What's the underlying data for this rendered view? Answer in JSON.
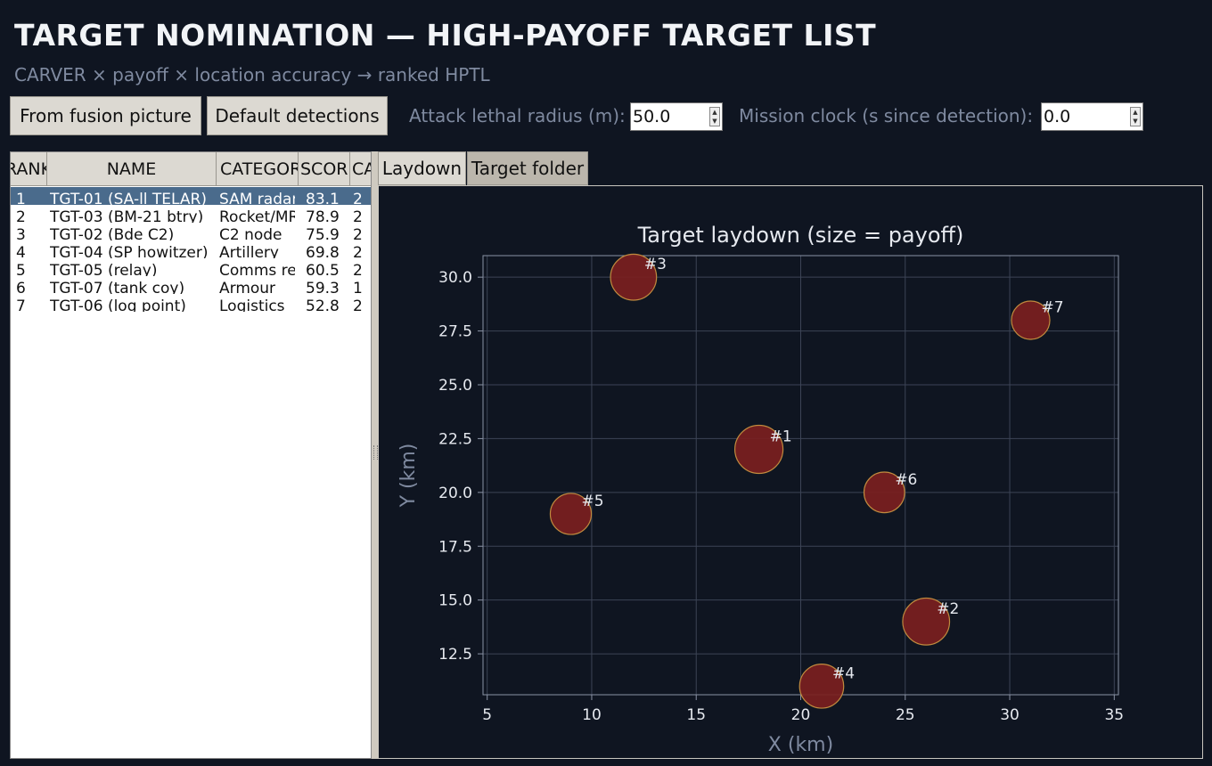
{
  "header": {
    "title": "TARGET NOMINATION — HIGH-PAYOFF TARGET LIST",
    "subtitle": "CARVER × payoff × location accuracy → ranked HPTL"
  },
  "toolbar": {
    "fusion_label": "From fusion picture",
    "default_label": "Default detections",
    "radius_label": "Attack lethal radius (m):",
    "radius_value": "50.0",
    "clock_label": "Mission clock (s since detection):",
    "clock_value": "0.0"
  },
  "table": {
    "columns": [
      "RANK",
      "NAME",
      "CATEGORY",
      "SCORE",
      "CA"
    ],
    "rows": [
      {
        "rank": "1",
        "name": "TGT-01 (SA-ll TELAR)",
        "category": "SAM radar",
        "score": "83.1",
        "ca": "2",
        "selected": true
      },
      {
        "rank": "2",
        "name": "TGT-03 (BM-21 btry)",
        "category": "Rocket/MRL",
        "score": "78.9",
        "ca": "2",
        "selected": false
      },
      {
        "rank": "3",
        "name": "TGT-02 (Bde C2)",
        "category": "C2 node",
        "score": "75.9",
        "ca": "2",
        "selected": false
      },
      {
        "rank": "4",
        "name": "TGT-04 (SP howitzer)",
        "category": "Artillery",
        "score": "69.8",
        "ca": "2",
        "selected": false
      },
      {
        "rank": "5",
        "name": "TGT-05 (relay)",
        "category": "Comms relay",
        "score": "60.5",
        "ca": "2",
        "selected": false
      },
      {
        "rank": "6",
        "name": "TGT-07 (tank coy)",
        "category": "Armour",
        "score": "59.3",
        "ca": "1",
        "selected": false
      },
      {
        "rank": "7",
        "name": "TGT-06 (log point)",
        "category": "Logistics",
        "score": "52.8",
        "ca": "2",
        "selected": false
      }
    ]
  },
  "tabs": [
    {
      "label": "Laydown",
      "active": true
    },
    {
      "label": "Target folder",
      "active": false
    }
  ],
  "chart_data": {
    "type": "scatter",
    "title": "Target laydown (size = payoff)",
    "xlabel": "X (km)",
    "ylabel": "Y (km)",
    "xlim": [
      4.8,
      35.2
    ],
    "ylim": [
      10.6,
      31.0
    ],
    "xticks": [
      5,
      10,
      15,
      20,
      25,
      30,
      35
    ],
    "yticks": [
      12.5,
      15.0,
      17.5,
      20.0,
      22.5,
      25.0,
      27.5,
      30.0
    ],
    "grid": true,
    "points": [
      {
        "label": "#1",
        "x": 18,
        "y": 22,
        "payoff": 83.1
      },
      {
        "label": "#2",
        "x": 26,
        "y": 14,
        "payoff": 78.9
      },
      {
        "label": "#3",
        "x": 12,
        "y": 30,
        "payoff": 75.9
      },
      {
        "label": "#4",
        "x": 21,
        "y": 11,
        "payoff": 69.8
      },
      {
        "label": "#5",
        "x": 9,
        "y": 19,
        "payoff": 60.5
      },
      {
        "label": "#6",
        "x": 24,
        "y": 20,
        "payoff": 59.3
      },
      {
        "label": "#7",
        "x": 31,
        "y": 28,
        "payoff": 52.8
      }
    ],
    "colors": {
      "marker": "#7b2020",
      "marker_edge": "#c08a3e",
      "grid": "#3c4456",
      "axis": "#8a93a5",
      "text": "#e6e9ef",
      "label": "#7f8aa0"
    }
  }
}
